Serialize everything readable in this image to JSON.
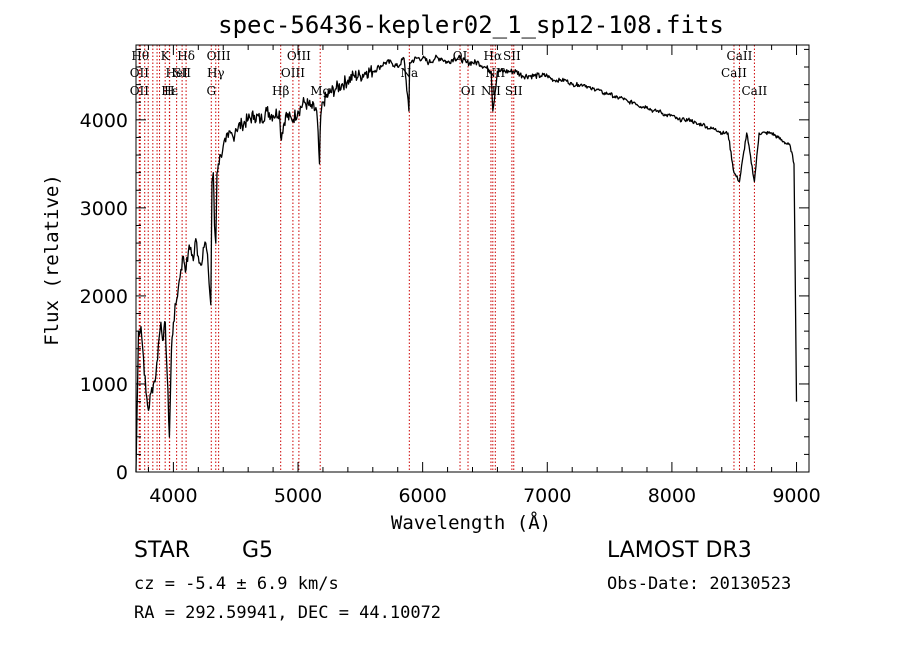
{
  "colors": {
    "spectrum": "#000000",
    "line_marker": "#cc0000",
    "axis": "#000000",
    "background": "#ffffff"
  },
  "chart_data": {
    "type": "line",
    "title": "spec-56436-kepler02_1_sp12-108.fits",
    "xlabel": "Wavelength (Å)",
    "ylabel": "Flux (relative)",
    "xlim": [
      3700,
      9100
    ],
    "ylim": [
      0,
      4850
    ],
    "xticks": [
      4000,
      5000,
      6000,
      7000,
      8000,
      9000
    ],
    "yticks": [
      0,
      1000,
      2000,
      3000,
      4000
    ],
    "grid": false,
    "series": [
      {
        "x": [
          3700,
          3720,
          3740,
          3760,
          3780,
          3800,
          3820,
          3840,
          3860,
          3880,
          3900,
          3920,
          3935,
          3950,
          3968,
          3985,
          4000,
          4020,
          4040,
          4060,
          4080,
          4102,
          4120,
          4140,
          4160,
          4180,
          4200,
          4220,
          4240,
          4260,
          4280,
          4300,
          4310,
          4320,
          4330,
          4340,
          4350,
          4360,
          4380,
          4400,
          4420,
          4440,
          4460,
          4480,
          4500,
          4550,
          4600,
          4650,
          4700,
          4750,
          4800,
          4850,
          4861,
          4900,
          4950,
          5000,
          5050,
          5100,
          5150,
          5172,
          5183,
          5200,
          5250,
          5300,
          5350,
          5400,
          5450,
          5500,
          5550,
          5600,
          5650,
          5700,
          5750,
          5800,
          5850,
          5890,
          5896,
          5950,
          6000,
          6050,
          6100,
          6150,
          6200,
          6250,
          6300,
          6350,
          6400,
          6450,
          6500,
          6550,
          6563,
          6600,
          6650,
          6700,
          6750,
          6800,
          6850,
          6900,
          6950,
          7000,
          7050,
          7100,
          7150,
          7200,
          7250,
          7300,
          7350,
          7400,
          7450,
          7500,
          7550,
          7600,
          7650,
          7700,
          7750,
          7800,
          7850,
          7900,
          7950,
          8000,
          8050,
          8100,
          8150,
          8200,
          8250,
          8300,
          8350,
          8400,
          8450,
          8498,
          8542,
          8600,
          8662,
          8700,
          8750,
          8800,
          8850,
          8900,
          8950,
          8980,
          9000
        ],
        "values": [
          0,
          1600,
          1650,
          1300,
          900,
          700,
          900,
          1000,
          1100,
          1450,
          1700,
          1500,
          1700,
          1100,
          400,
          1400,
          1700,
          1900,
          2100,
          2300,
          2450,
          2300,
          2500,
          2550,
          2400,
          2650,
          2450,
          2350,
          2550,
          2600,
          2300,
          1900,
          3300,
          3400,
          2800,
          2600,
          3400,
          3500,
          3600,
          3700,
          3750,
          3800,
          3850,
          3800,
          3900,
          3950,
          4000,
          4050,
          4000,
          4100,
          4050,
          4100,
          3800,
          4050,
          4000,
          4100,
          4200,
          4150,
          4100,
          3500,
          4050,
          4200,
          4300,
          4350,
          4400,
          4450,
          4500,
          4500,
          4550,
          4550,
          4600,
          4650,
          4650,
          4600,
          4700,
          4100,
          4650,
          4700,
          4700,
          4650,
          4700,
          4700,
          4650,
          4700,
          4700,
          4650,
          4650,
          4650,
          4600,
          4550,
          4100,
          4550,
          4550,
          4550,
          4550,
          4500,
          4500,
          4500,
          4500,
          4500,
          4450,
          4450,
          4450,
          4400,
          4400,
          4400,
          4350,
          4350,
          4300,
          4300,
          4250,
          4250,
          4200,
          4200,
          4150,
          4150,
          4100,
          4100,
          4050,
          4050,
          4000,
          4000,
          4000,
          3950,
          3950,
          3900,
          3900,
          3850,
          3850,
          3400,
          3300,
          3850,
          3300,
          3850,
          3850,
          3850,
          3800,
          3750,
          3700,
          3500,
          800
        ]
      }
    ],
    "line_markers": [
      {
        "wavelength": 3734,
        "label": "Hθ",
        "row": 0
      },
      {
        "wavelength": 3727,
        "label": "OII",
        "row": 1
      },
      {
        "wavelength": 3727,
        "label": "OII",
        "row": 2
      },
      {
        "wavelength": 3770,
        "label": "",
        "row": -1
      },
      {
        "wavelength": 3798,
        "label": "",
        "row": -1
      },
      {
        "wavelength": 3835,
        "label": "",
        "row": -1
      },
      {
        "wavelength": 3869,
        "label": "",
        "row": -1
      },
      {
        "wavelength": 3889,
        "label": "",
        "row": -1
      },
      {
        "wavelength": 3934,
        "label": "K",
        "row": 0
      },
      {
        "wavelength": 3968,
        "label": "H",
        "row": 2
      },
      {
        "wavelength": 3970,
        "label": "Hε",
        "row": 2
      },
      {
        "wavelength": 4026,
        "label": "HeI",
        "row": 1
      },
      {
        "wavelength": 4070,
        "label": "SII",
        "row": 1
      },
      {
        "wavelength": 4102,
        "label": "Hδ",
        "row": 0
      },
      {
        "wavelength": 4304,
        "label": "G",
        "row": 2
      },
      {
        "wavelength": 4340,
        "label": "Hγ",
        "row": 1
      },
      {
        "wavelength": 4363,
        "label": "OIII",
        "row": 0
      },
      {
        "wavelength": 4861,
        "label": "Hβ",
        "row": 2
      },
      {
        "wavelength": 4959,
        "label": "OIII",
        "row": 1
      },
      {
        "wavelength": 5007,
        "label": "OIII",
        "row": 0
      },
      {
        "wavelength": 5178,
        "label": "Mg",
        "row": 2
      },
      {
        "wavelength": 5893,
        "label": "Na",
        "row": 1
      },
      {
        "wavelength": 6300,
        "label": "OI",
        "row": 0
      },
      {
        "wavelength": 6364,
        "label": "OI",
        "row": 2
      },
      {
        "wavelength": 6548,
        "label": "NII",
        "row": 2
      },
      {
        "wavelength": 6563,
        "label": "Hα",
        "row": 0
      },
      {
        "wavelength": 6583,
        "label": "NII",
        "row": 1
      },
      {
        "wavelength": 6716,
        "label": "SII",
        "row": 0
      },
      {
        "wavelength": 6731,
        "label": "SII",
        "row": 2
      },
      {
        "wavelength": 8498,
        "label": "CaII",
        "row": 1
      },
      {
        "wavelength": 8542,
        "label": "CaII",
        "row": 0
      },
      {
        "wavelength": 8662,
        "label": "CaII",
        "row": 2
      }
    ]
  },
  "info": {
    "object_class": "STAR",
    "subclass": "G5",
    "redshift": "cz = -5.4 ± 6.9 km/s",
    "coordinates": "RA = 292.59941, DEC =  44.10072",
    "survey": "LAMOST DR3",
    "obs_date": "Obs-Date: 20130523"
  }
}
